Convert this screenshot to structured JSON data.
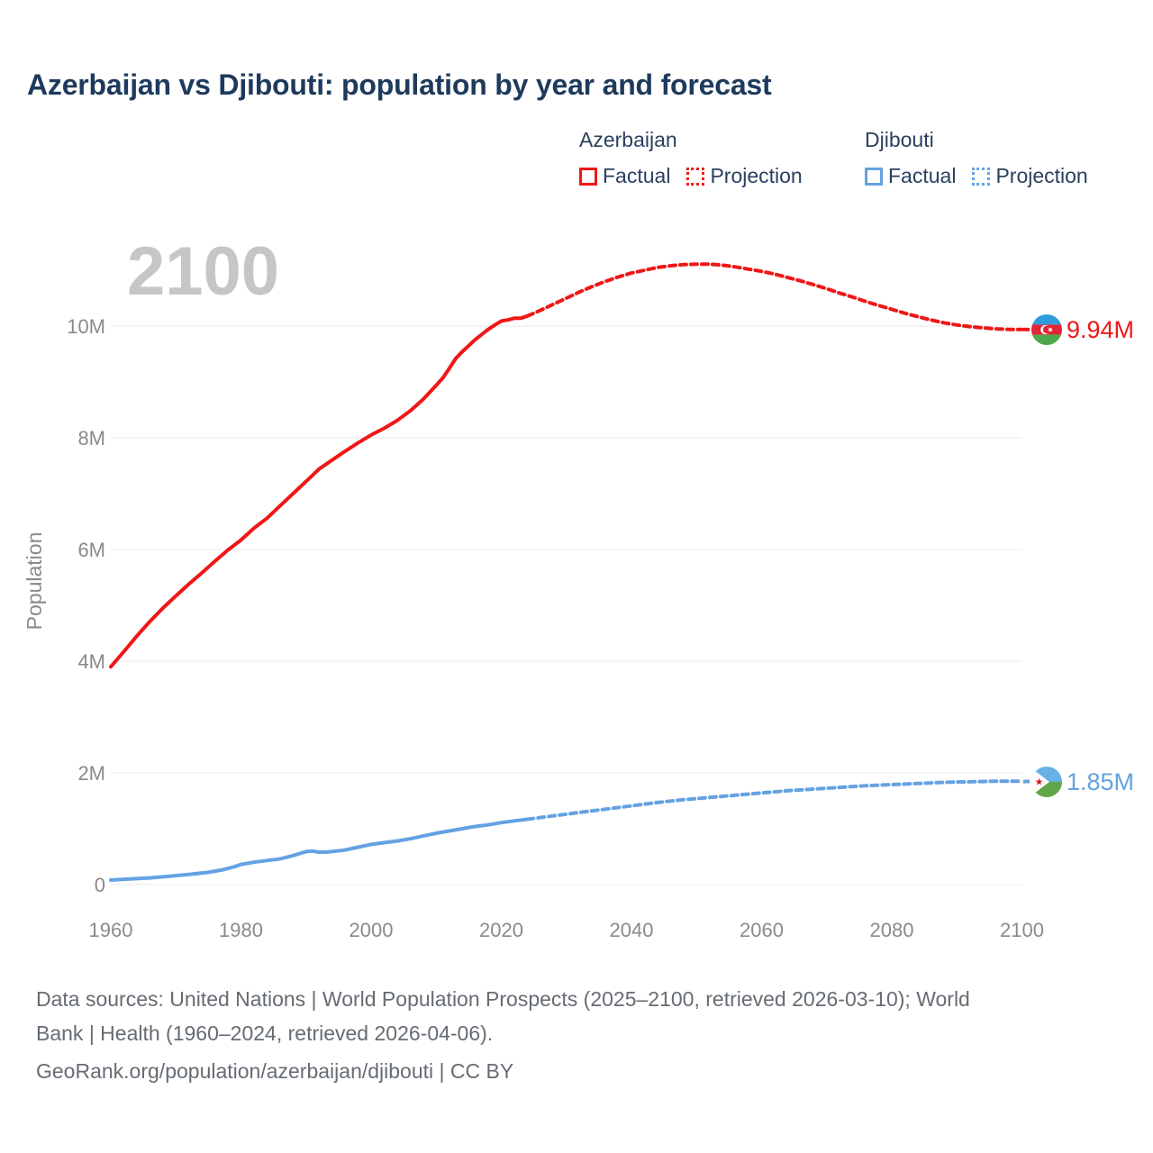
{
  "title": "Azerbaijan vs Djibouti: population by year and forecast",
  "watermark_year": "2100",
  "colors": {
    "azerbaijan": "#ef1717",
    "djibouti": "#64a2e2",
    "title_text": "#1e3a5c",
    "axis_text": "#8a8a8a",
    "gridline": "#e8e8e8",
    "watermark": "#c6c6c6",
    "footer_text": "#666c73"
  },
  "chart_data": {
    "type": "line",
    "title": "Azerbaijan vs Djibouti: population by year and forecast",
    "xlabel": "",
    "ylabel": "Population",
    "watermark": "2100",
    "grid": "horizontal",
    "legend_position": "top-right",
    "xlim": [
      1960,
      2100
    ],
    "ylim_millions": [
      0,
      11.5
    ],
    "x_ticks": [
      {
        "value": 1960,
        "label": "1960"
      },
      {
        "value": 1980,
        "label": "1980"
      },
      {
        "value": 2000,
        "label": "2000"
      },
      {
        "value": 2020,
        "label": "2020"
      },
      {
        "value": 2040,
        "label": "2040"
      },
      {
        "value": 2060,
        "label": "2060"
      },
      {
        "value": 2080,
        "label": "2080"
      },
      {
        "value": 2100,
        "label": "2100"
      }
    ],
    "y_ticks": [
      {
        "value": 0,
        "label": "0"
      },
      {
        "value": 2,
        "label": "2M"
      },
      {
        "value": 4,
        "label": "4M"
      },
      {
        "value": 6,
        "label": "6M"
      },
      {
        "value": 8,
        "label": "8M"
      },
      {
        "value": 10,
        "label": "10M"
      }
    ],
    "legend": {
      "groups": [
        {
          "title": "Azerbaijan",
          "items": [
            {
              "label": "Factual",
              "style": "solid"
            },
            {
              "label": "Projection",
              "style": "dotted"
            }
          ]
        },
        {
          "title": "Djibouti",
          "items": [
            {
              "label": "Factual",
              "style": "solid"
            },
            {
              "label": "Projection",
              "style": "dotted"
            }
          ]
        }
      ]
    },
    "series": [
      {
        "name": "azerbaijan-factual",
        "country": "Azerbaijan",
        "kind": "Factual",
        "color": "#ef1717",
        "style": "solid",
        "points_millions": [
          [
            1960,
            3.9
          ],
          [
            1962,
            4.17
          ],
          [
            1964,
            4.45
          ],
          [
            1966,
            4.71
          ],
          [
            1968,
            4.95
          ],
          [
            1970,
            5.17
          ],
          [
            1972,
            5.38
          ],
          [
            1974,
            5.58
          ],
          [
            1976,
            5.79
          ],
          [
            1978,
            5.99
          ],
          [
            1980,
            6.17
          ],
          [
            1982,
            6.38
          ],
          [
            1984,
            6.56
          ],
          [
            1986,
            6.78
          ],
          [
            1988,
            7.0
          ],
          [
            1990,
            7.22
          ],
          [
            1992,
            7.44
          ],
          [
            1994,
            7.6
          ],
          [
            1996,
            7.76
          ],
          [
            1998,
            7.91
          ],
          [
            2000,
            8.05
          ],
          [
            2002,
            8.17
          ],
          [
            2004,
            8.31
          ],
          [
            2006,
            8.48
          ],
          [
            2008,
            8.69
          ],
          [
            2010,
            8.94
          ],
          [
            2011,
            9.07
          ],
          [
            2012,
            9.24
          ],
          [
            2013,
            9.42
          ],
          [
            2014,
            9.54
          ],
          [
            2015,
            9.65
          ],
          [
            2016,
            9.76
          ],
          [
            2017,
            9.85
          ],
          [
            2018,
            9.94
          ],
          [
            2019,
            10.02
          ],
          [
            2020,
            10.09
          ],
          [
            2021,
            10.11
          ],
          [
            2022,
            10.14
          ],
          [
            2023,
            10.14
          ],
          [
            2024,
            10.18
          ]
        ]
      },
      {
        "name": "azerbaijan-projection",
        "country": "Azerbaijan",
        "kind": "Projection",
        "color": "#ef1717",
        "style": "dotted",
        "points_millions": [
          [
            2024,
            10.18
          ],
          [
            2026,
            10.28
          ],
          [
            2028,
            10.39
          ],
          [
            2030,
            10.5
          ],
          [
            2032,
            10.61
          ],
          [
            2034,
            10.71
          ],
          [
            2036,
            10.8
          ],
          [
            2038,
            10.88
          ],
          [
            2040,
            10.95
          ],
          [
            2042,
            11.0
          ],
          [
            2044,
            11.05
          ],
          [
            2046,
            11.08
          ],
          [
            2048,
            11.1
          ],
          [
            2050,
            11.11
          ],
          [
            2052,
            11.11
          ],
          [
            2054,
            11.09
          ],
          [
            2056,
            11.06
          ],
          [
            2058,
            11.02
          ],
          [
            2060,
            10.98
          ],
          [
            2062,
            10.93
          ],
          [
            2064,
            10.87
          ],
          [
            2066,
            10.81
          ],
          [
            2068,
            10.74
          ],
          [
            2070,
            10.67
          ],
          [
            2072,
            10.59
          ],
          [
            2074,
            10.52
          ],
          [
            2076,
            10.44
          ],
          [
            2078,
            10.37
          ],
          [
            2080,
            10.3
          ],
          [
            2082,
            10.23
          ],
          [
            2084,
            10.17
          ],
          [
            2086,
            10.11
          ],
          [
            2088,
            10.06
          ],
          [
            2090,
            10.02
          ],
          [
            2092,
            9.99
          ],
          [
            2094,
            9.97
          ],
          [
            2096,
            9.95
          ],
          [
            2098,
            9.94
          ],
          [
            2100,
            9.94
          ]
        ]
      },
      {
        "name": "djibouti-factual",
        "country": "Djibouti",
        "kind": "Factual",
        "color": "#64a2e2",
        "style": "solid",
        "points_millions": [
          [
            1960,
            0.08
          ],
          [
            1963,
            0.1
          ],
          [
            1966,
            0.12
          ],
          [
            1969,
            0.15
          ],
          [
            1972,
            0.18
          ],
          [
            1975,
            0.22
          ],
          [
            1977,
            0.26
          ],
          [
            1979,
            0.32
          ],
          [
            1980,
            0.36
          ],
          [
            1982,
            0.4
          ],
          [
            1984,
            0.43
          ],
          [
            1986,
            0.46
          ],
          [
            1988,
            0.52
          ],
          [
            1990,
            0.59
          ],
          [
            1991,
            0.6
          ],
          [
            1992,
            0.58
          ],
          [
            1993,
            0.58
          ],
          [
            1994,
            0.59
          ],
          [
            1996,
            0.62
          ],
          [
            1998,
            0.67
          ],
          [
            2000,
            0.72
          ],
          [
            2002,
            0.75
          ],
          [
            2004,
            0.78
          ],
          [
            2006,
            0.82
          ],
          [
            2008,
            0.87
          ],
          [
            2010,
            0.92
          ],
          [
            2012,
            0.96
          ],
          [
            2014,
            1.0
          ],
          [
            2016,
            1.04
          ],
          [
            2018,
            1.07
          ],
          [
            2020,
            1.11
          ],
          [
            2022,
            1.14
          ],
          [
            2024,
            1.17
          ]
        ]
      },
      {
        "name": "djibouti-projection",
        "country": "Djibouti",
        "kind": "Projection",
        "color": "#64a2e2",
        "style": "dotted",
        "points_millions": [
          [
            2024,
            1.17
          ],
          [
            2028,
            1.23
          ],
          [
            2032,
            1.29
          ],
          [
            2036,
            1.35
          ],
          [
            2040,
            1.41
          ],
          [
            2044,
            1.47
          ],
          [
            2048,
            1.52
          ],
          [
            2052,
            1.56
          ],
          [
            2056,
            1.6
          ],
          [
            2060,
            1.64
          ],
          [
            2064,
            1.68
          ],
          [
            2068,
            1.71
          ],
          [
            2072,
            1.74
          ],
          [
            2076,
            1.77
          ],
          [
            2080,
            1.79
          ],
          [
            2084,
            1.81
          ],
          [
            2088,
            1.83
          ],
          [
            2092,
            1.84
          ],
          [
            2096,
            1.85
          ],
          [
            2100,
            1.85
          ]
        ]
      }
    ],
    "end_labels": {
      "azerbaijan": {
        "text": "9.94M",
        "value_millions": 9.94,
        "color": "#ef1717"
      },
      "djibouti": {
        "text": "1.85M",
        "value_millions": 1.85,
        "color": "#64a2e2"
      }
    }
  },
  "footer": {
    "line1": "Data sources: United Nations | World Population Prospects (2025–2100, retrieved 2026-03-10); World",
    "line2": "Bank | Health (1960–2024, retrieved 2026-04-06).",
    "line3": "GeoRank.org/population/azerbaijan/djibouti | CC BY"
  }
}
